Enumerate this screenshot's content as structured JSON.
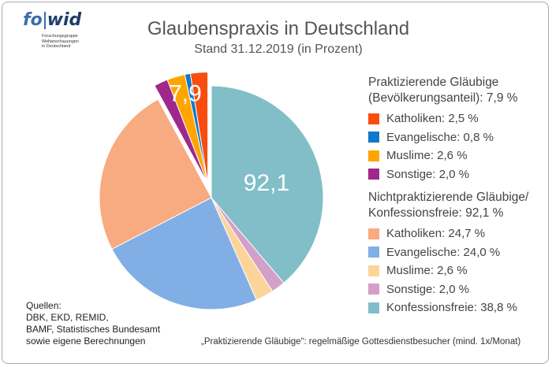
{
  "logo": {
    "text_fo": "fo",
    "text_wid": "wid",
    "subtitle_lines": [
      "Forschungsgruppe",
      "Weltanschauungen",
      "in Deutschland"
    ]
  },
  "title": "Glaubenspraxis in Deutschland",
  "subtitle": "Stand 31.12.2019 (in Prozent)",
  "colors": {
    "practicing": [
      "#f84d0f",
      "#1478c8",
      "#ffa500",
      "#a0288c"
    ],
    "nonpracticing": [
      "#f8aa80",
      "#82aee6",
      "#fcd49a",
      "#d2a0c8",
      "#82bec8"
    ]
  },
  "chart_data": {
    "type": "pie",
    "title": "Glaubenspraxis in Deutschland",
    "subtitle": "Stand 31.12.2019 (in Prozent)",
    "groups": [
      {
        "name": "Praktizierende Gläubige",
        "total": 7.9,
        "total_label": "7,9",
        "exploded": true,
        "slices": [
          {
            "label": "Katholiken",
            "value": 2.5
          },
          {
            "label": "Evangelische",
            "value": 0.8
          },
          {
            "label": "Muslime",
            "value": 2.6
          },
          {
            "label": "Sonstige",
            "value": 2.0
          }
        ]
      },
      {
        "name": "Nichtpraktizierende Gläubige/Konfessionsfreie",
        "total": 92.1,
        "total_label": "92,1",
        "exploded": false,
        "slices": [
          {
            "label": "Katholiken",
            "value": 24.7
          },
          {
            "label": "Evangelische",
            "value": 24.0
          },
          {
            "label": "Muslime",
            "value": 2.6
          },
          {
            "label": "Sonstige",
            "value": 2.0
          },
          {
            "label": "Konfessionsfreie",
            "value": 38.8
          }
        ]
      }
    ]
  },
  "legend": {
    "practicing_header_1": "Praktizierende Gläubige",
    "practicing_header_2": "(Bevölkerungsanteil):  7,9 %",
    "practicing_items": [
      "Katholiken:  2,5 %",
      "Evangelische:  0,8 %",
      "Muslime:  2,6 %",
      "Sonstige:  2,0 %"
    ],
    "nonpracticing_header_1": "Nichtpraktizierende Gläubige/",
    "nonpracticing_header_2": "Konfessionsfreie:  92,1 %",
    "nonpracticing_items": [
      "Katholiken:  24,7 %",
      "Evangelische:  24,0 %",
      "Muslime:  2,6 %",
      "Sonstige:  2,0 %",
      "Konfessionsfreie:  38,8 %"
    ]
  },
  "sources": [
    "Quellen:",
    "DBK, EKD, REMID,",
    "BAMF, Statistisches Bundesamt",
    "sowie eigene Berechnungen"
  ],
  "footnote": "„Praktizierende Gläubige“: regelmäßige Gottesdienstbesucher (mind. 1x/Monat)"
}
